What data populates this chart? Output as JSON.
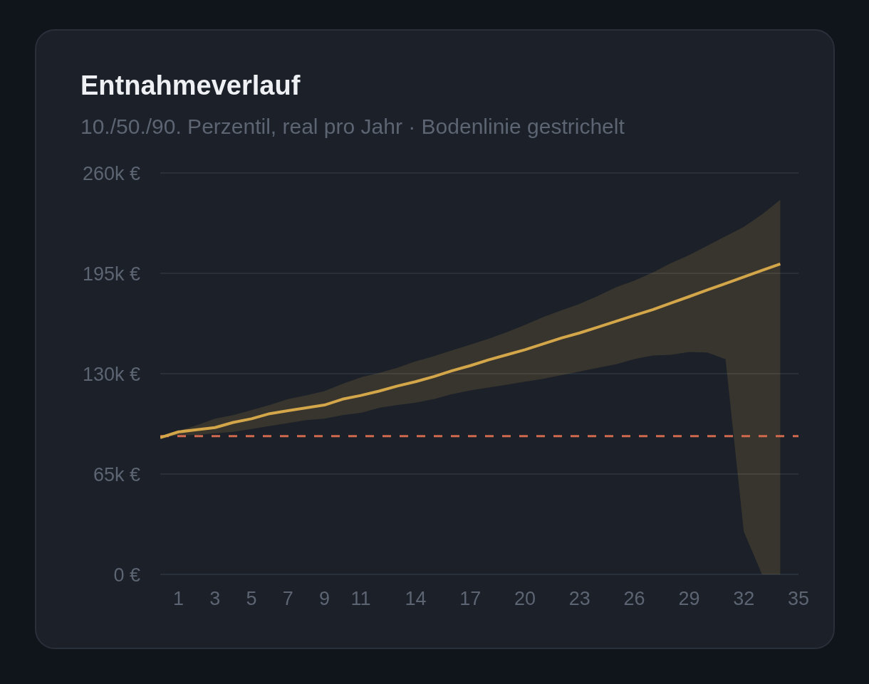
{
  "chart_data": {
    "type": "line",
    "title": "Entnahmeverlauf",
    "subtitle": "10./50./90. Perzentil, real pro Jahr · Bodenlinie gestrichelt",
    "x": [
      0,
      1,
      2,
      3,
      4,
      5,
      6,
      7,
      8,
      9,
      10,
      11,
      12,
      13,
      14,
      15,
      16,
      17,
      18,
      19,
      20,
      21,
      22,
      23,
      24,
      25,
      26,
      27,
      28,
      29,
      30,
      31,
      32,
      33,
      34
    ],
    "series": [
      {
        "color": "#d4a64a",
        "values": [
          88600,
          92300,
          93700,
          95100,
          98400,
          100800,
          104100,
          106000,
          107900,
          109700,
          113500,
          115900,
          118700,
          122000,
          124800,
          128100,
          131900,
          135200,
          138900,
          142200,
          145500,
          149300,
          153100,
          156400,
          160100,
          163900,
          167700,
          171400,
          175700,
          179900,
          184200,
          188400,
          192600,
          196900,
          201100
        ],
        "lower": [
          88600,
          90000,
          90400,
          91400,
          92300,
          94200,
          96100,
          98000,
          99900,
          100800,
          103100,
          104600,
          107900,
          109700,
          111200,
          113500,
          116800,
          119200,
          121000,
          122900,
          124800,
          126700,
          129100,
          131400,
          133800,
          136100,
          139400,
          141800,
          142200,
          144100,
          143700,
          139400,
          27800,
          0,
          0
        ],
        "upper": [
          88600,
          92800,
          96600,
          100800,
          103100,
          106400,
          109700,
          113500,
          115900,
          118700,
          123400,
          127600,
          130500,
          133800,
          138000,
          141300,
          145100,
          148800,
          152600,
          156800,
          161600,
          166700,
          171000,
          175200,
          180400,
          186000,
          190300,
          195500,
          201600,
          206800,
          212900,
          219000,
          225100,
          233100,
          242600
        ]
      }
    ],
    "xlim": [
      0,
      35
    ],
    "xticks": [
      1,
      3,
      5,
      7,
      9,
      11,
      14,
      17,
      20,
      23,
      26,
      29,
      32,
      35
    ],
    "ylim": [
      0,
      260000
    ],
    "yticks": [
      {
        "value": 0,
        "label": "0 €"
      },
      {
        "value": 65000,
        "label": "65k €"
      },
      {
        "value": 130000,
        "label": "130k €"
      },
      {
        "value": 195000,
        "label": "195k €"
      },
      {
        "value": 260000,
        "label": "260k €"
      }
    ],
    "ref_lines": [
      {
        "axis": "y",
        "value": 89500,
        "color": "#d0694e",
        "line_style": "dashed"
      }
    ],
    "grid": "y",
    "marker": "none",
    "line_style": "solid"
  }
}
